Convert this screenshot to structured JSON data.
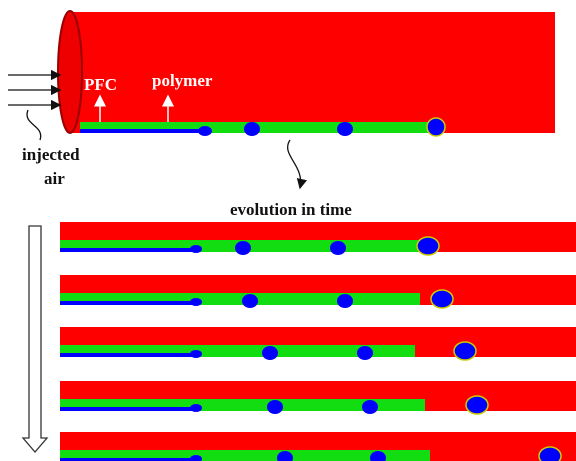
{
  "labels": {
    "pfc": "PFC",
    "polymer": "polymer",
    "injected_air": [
      "injected",
      "air"
    ],
    "evolution": "evolution in time"
  }
}
